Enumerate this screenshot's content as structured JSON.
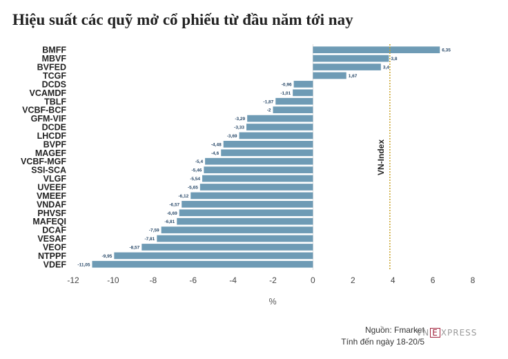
{
  "title": "Hiệu suất các quỹ mở cổ phiếu từ đầu năm tới nay",
  "footer": {
    "source": "Nguồn: Fmarket",
    "date": "Tính đến ngày 18-20/5"
  },
  "logo": {
    "prefix": "VN",
    "mark": "E",
    "suffix": "XPRESS"
  },
  "colors": {
    "bar": "#6e9bb5",
    "reference_line": "#c9a227",
    "value_label": "#2a4a6a"
  },
  "chart_data": {
    "type": "bar",
    "orientation": "horizontal",
    "categories": [
      "BMFF",
      "MBVF",
      "BVFED",
      "TCGF",
      "DCDS",
      "VCAMDF",
      "TBLF",
      "VCBF-BCF",
      "GFM-VIF",
      "DCDE",
      "LHCDF",
      "BVPF",
      "MAGEF",
      "VCBF-MGF",
      "SSI-SCA",
      "VLGF",
      "UVEEF",
      "VMEEF",
      "VNDAF",
      "PHVSF",
      "MAFEQI",
      "DCAF",
      "VESAF",
      "VEOF",
      "NTPPF",
      "VDEF"
    ],
    "values": [
      6.35,
      3.8,
      3.4,
      1.67,
      -0.96,
      -1.01,
      -1.87,
      -2,
      -3.29,
      -3.33,
      -3.69,
      -4.48,
      -4.6,
      -5.4,
      -5.46,
      -5.54,
      -5.65,
      -6.12,
      -6.57,
      -6.69,
      -6.81,
      -7.59,
      -7.81,
      -8.57,
      -9.95,
      -11.05
    ],
    "value_labels": [
      "6,35",
      "3,8",
      "3,4",
      "1,67",
      "-0,96",
      "-1,01",
      "-1,87",
      "-2",
      "-3,29",
      "-3,33",
      "-3,69",
      "-4,48",
      "-4,6",
      "-5,4",
      "-5,46",
      "-5,54",
      "-5,65",
      "-6,12",
      "-6,57",
      "-6,69",
      "-6,81",
      "-7,59",
      "-7,81",
      "-8,57",
      "-9,95",
      "-11,05"
    ],
    "xlim": [
      -12,
      8
    ],
    "xticks": [
      -12,
      -10,
      -8,
      -6,
      -4,
      -2,
      0,
      2,
      4,
      6,
      8
    ],
    "xlabel": "%",
    "reference": {
      "label": "VN-Index",
      "value": 3.85
    },
    "grid": false
  }
}
